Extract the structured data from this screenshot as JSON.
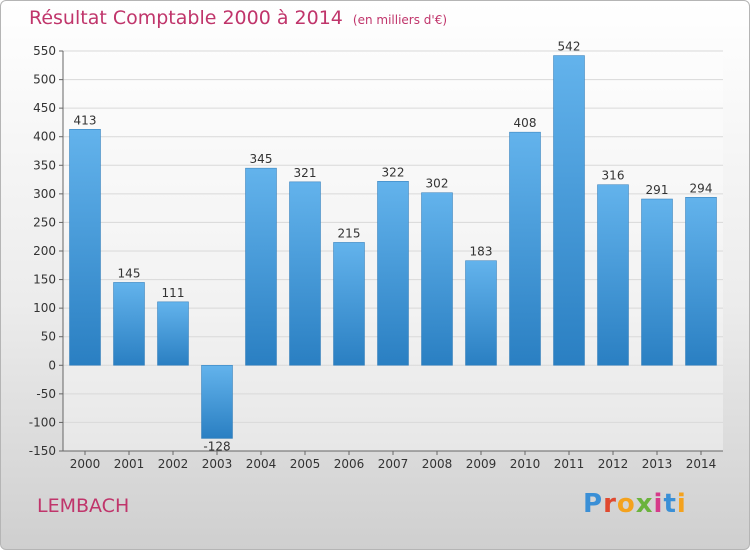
{
  "header": {
    "title": "Résultat Comptable 2000 à 2014",
    "subtitle": "(en milliers d'€)"
  },
  "place_label": "LEMBACH",
  "logo_text": "Proxiti",
  "colors": {
    "title": "#c0356b",
    "bar_top": "#63b3ec",
    "bar_bottom": "#2a7fc2",
    "grid": "#d9d9d9",
    "axis_text": "#333333"
  },
  "chart_data": {
    "type": "bar",
    "title": "Résultat Comptable 2000 à 2014",
    "xlabel": "",
    "ylabel": "",
    "categories": [
      "2000",
      "2001",
      "2002",
      "2003",
      "2004",
      "2005",
      "2006",
      "2007",
      "2008",
      "2009",
      "2010",
      "2011",
      "2012",
      "2013",
      "2014"
    ],
    "values": [
      413,
      145,
      111,
      -128,
      345,
      321,
      215,
      322,
      302,
      183,
      408,
      542,
      316,
      291,
      294
    ],
    "ylim": [
      -150,
      550
    ],
    "yticks": [
      -150,
      -100,
      -50,
      0,
      50,
      100,
      150,
      200,
      250,
      300,
      350,
      400,
      450,
      500,
      550
    ],
    "grid": true,
    "legend": "none"
  }
}
